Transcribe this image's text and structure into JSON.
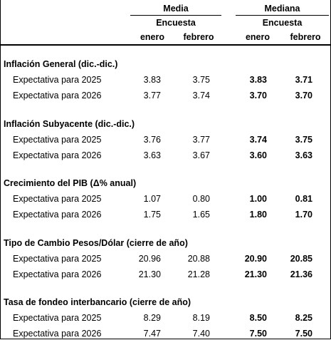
{
  "header": {
    "groups": [
      "Media",
      "Mediana"
    ],
    "survey": [
      "Encuesta",
      "Encuesta"
    ],
    "months": [
      "enero",
      "febrero",
      "enero",
      "febrero"
    ]
  },
  "sections": [
    {
      "title": "Inflación General (dic.-dic.)",
      "rows": [
        {
          "label": "Expectativa para 2025",
          "values": [
            "3.83",
            "3.75",
            "3.83",
            "3.71"
          ]
        },
        {
          "label": "Expectativa para 2026",
          "values": [
            "3.77",
            "3.74",
            "3.70",
            "3.70"
          ]
        }
      ]
    },
    {
      "title": "Inflación Subyacente (dic.-dic.)",
      "rows": [
        {
          "label": "Expectativa para 2025",
          "values": [
            "3.76",
            "3.77",
            "3.74",
            "3.75"
          ]
        },
        {
          "label": "Expectativa para 2026",
          "values": [
            "3.63",
            "3.67",
            "3.60",
            "3.63"
          ]
        }
      ]
    },
    {
      "title": "Crecimiento del PIB (Δ% anual)",
      "rows": [
        {
          "label": "Expectativa para 2025",
          "values": [
            "1.07",
            "0.80",
            "1.00",
            "0.81"
          ]
        },
        {
          "label": "Expectativa para 2026",
          "values": [
            "1.75",
            "1.65",
            "1.80",
            "1.70"
          ]
        }
      ]
    },
    {
      "title": "Tipo de Cambio Pesos/Dólar (cierre de año)",
      "rows": [
        {
          "label": "Expectativa para 2025",
          "values": [
            "20.96",
            "20.88",
            "20.90",
            "20.85"
          ]
        },
        {
          "label": "Expectativa para 2026",
          "values": [
            "21.30",
            "21.28",
            "21.30",
            "21.36"
          ]
        }
      ]
    },
    {
      "title": "Tasa de fondeo interbancario (cierre de año)",
      "rows": [
        {
          "label": "Expectativa para 2025",
          "values": [
            "8.29",
            "8.19",
            "8.50",
            "8.25"
          ]
        },
        {
          "label": "Expectativa para 2026",
          "values": [
            "7.47",
            "7.40",
            "7.50",
            "7.50"
          ]
        }
      ]
    }
  ]
}
